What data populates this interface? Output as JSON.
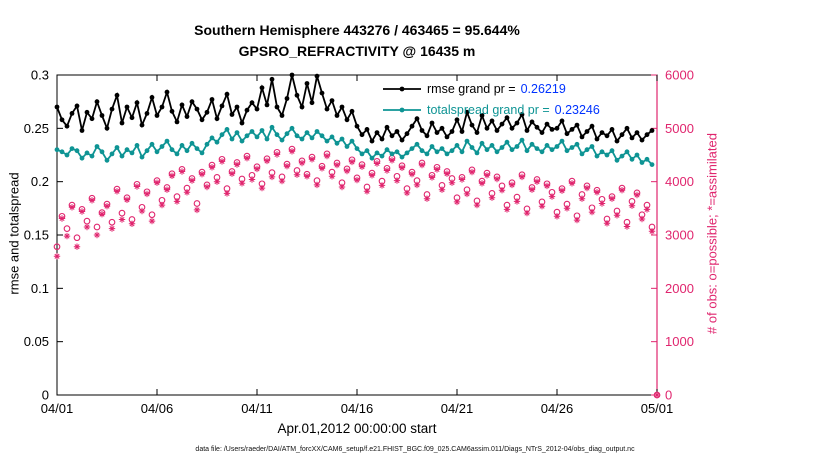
{
  "caption": "data file: /Users/raeder/DAI/ATM_forcXX/CAM6_setup/f.e21.FHIST_BGC.f09_025.CAM6assim.011/Diags_NTrS_2012-04/obs_diag_output.nc",
  "colors": {
    "legend_value": "#0033ff",
    "axis_black": "#000000",
    "obs_pink": "#e0256e",
    "spread_teal": "#0e9494"
  },
  "legend": [
    {
      "key": "rmse",
      "label": "rmse grand pr =",
      "value": "0.26219",
      "color": "#000000"
    },
    {
      "key": "totalspread",
      "label": "totalspread grand pr =",
      "value": "0.23246",
      "color": "#0e9494"
    }
  ],
  "chart_data": {
    "type": "line",
    "title": "Southern Hemisphere 443276 / 463465 = 95.644%",
    "subtitle": "GPSRO_REFRACTIVITY @ 16435 m",
    "xlabel": "Apr.01,2012 00:00:00 start",
    "ylabel_left": "rmse and totalspread",
    "ylabel_right": "# of obs: o=possible; *=assimilated",
    "grid": false,
    "right_axis_color": "#e0256e",
    "x_range": [
      0,
      120
    ],
    "x_unit": "6-hourly steps from Apr.01,2012 00:00 to May.01,2012 00:00",
    "x_tick_positions": [
      0,
      20,
      40,
      60,
      80,
      100,
      120
    ],
    "x_tick_labels": [
      "04/01",
      "04/06",
      "04/11",
      "04/16",
      "04/21",
      "04/26",
      "05/01"
    ],
    "left_range": [
      0,
      0.3
    ],
    "left_ticks": [
      0,
      0.05,
      0.1,
      0.15,
      0.2,
      0.25,
      0.3
    ],
    "left_tick_labels": [
      "0",
      "0.05",
      "0.1",
      "0.15",
      "0.2",
      "0.25",
      "0.3"
    ],
    "right_range": [
      0,
      6000
    ],
    "right_ticks": [
      0,
      1000,
      2000,
      3000,
      4000,
      5000,
      6000
    ],
    "right_tick_labels": [
      "0",
      "1000",
      "2000",
      "3000",
      "4000",
      "5000",
      "6000"
    ],
    "series": [
      {
        "name": "rmse",
        "type": "line",
        "axis": "left",
        "marker": "dot",
        "color": "#000000",
        "values": [
          0.27,
          0.258,
          0.252,
          0.264,
          0.271,
          0.248,
          0.265,
          0.259,
          0.275,
          0.262,
          0.25,
          0.268,
          0.281,
          0.255,
          0.27,
          0.26,
          0.274,
          0.253,
          0.264,
          0.279,
          0.262,
          0.27,
          0.284,
          0.266,
          0.256,
          0.272,
          0.261,
          0.275,
          0.268,
          0.258,
          0.265,
          0.277,
          0.259,
          0.271,
          0.282,
          0.263,
          0.27,
          0.255,
          0.267,
          0.274,
          0.268,
          0.288,
          0.272,
          0.296,
          0.27,
          0.262,
          0.278,
          0.3,
          0.281,
          0.27,
          0.292,
          0.274,
          0.299,
          0.283,
          0.268,
          0.276,
          0.262,
          0.27,
          0.258,
          0.266,
          0.252,
          0.244,
          0.249,
          0.238,
          0.246,
          0.24,
          0.251,
          0.243,
          0.247,
          0.239,
          0.245,
          0.252,
          0.259,
          0.248,
          0.243,
          0.255,
          0.246,
          0.25,
          0.242,
          0.247,
          0.258,
          0.247,
          0.265,
          0.253,
          0.246,
          0.262,
          0.25,
          0.257,
          0.248,
          0.254,
          0.26,
          0.25,
          0.255,
          0.263,
          0.248,
          0.256,
          0.251,
          0.246,
          0.254,
          0.249,
          0.25,
          0.257,
          0.245,
          0.249,
          0.253,
          0.242,
          0.247,
          0.252,
          0.24,
          0.246,
          0.243,
          0.249,
          0.238,
          0.244,
          0.25,
          0.241,
          0.246,
          0.239,
          0.244,
          0.248,
          null
        ]
      },
      {
        "name": "totalspread",
        "type": "line",
        "axis": "left",
        "marker": "dot",
        "color": "#0e9494",
        "values": [
          0.23,
          0.228,
          0.225,
          0.231,
          0.229,
          0.222,
          0.227,
          0.224,
          0.233,
          0.228,
          0.22,
          0.226,
          0.232,
          0.224,
          0.23,
          0.227,
          0.234,
          0.223,
          0.229,
          0.235,
          0.228,
          0.233,
          0.238,
          0.23,
          0.226,
          0.234,
          0.229,
          0.236,
          0.231,
          0.227,
          0.235,
          0.241,
          0.237,
          0.244,
          0.249,
          0.24,
          0.246,
          0.238,
          0.243,
          0.247,
          0.242,
          0.248,
          0.24,
          0.251,
          0.244,
          0.239,
          0.245,
          0.25,
          0.243,
          0.24,
          0.246,
          0.241,
          0.247,
          0.243,
          0.238,
          0.242,
          0.236,
          0.24,
          0.233,
          0.238,
          0.231,
          0.226,
          0.229,
          0.222,
          0.227,
          0.224,
          0.23,
          0.226,
          0.228,
          0.223,
          0.227,
          0.231,
          0.235,
          0.229,
          0.226,
          0.233,
          0.228,
          0.231,
          0.226,
          0.229,
          0.234,
          0.228,
          0.238,
          0.232,
          0.227,
          0.236,
          0.23,
          0.234,
          0.228,
          0.232,
          0.237,
          0.23,
          0.233,
          0.239,
          0.229,
          0.235,
          0.231,
          0.228,
          0.234,
          0.23,
          0.233,
          0.238,
          0.229,
          0.232,
          0.235,
          0.226,
          0.23,
          0.233,
          0.224,
          0.228,
          0.225,
          0.229,
          0.22,
          0.224,
          0.228,
          0.221,
          0.225,
          0.218,
          0.221,
          0.216,
          null
        ]
      },
      {
        "name": "possible",
        "type": "scatter",
        "axis": "right",
        "marker": "circle",
        "color": "#e0256e",
        "values": [
          2780,
          3350,
          3120,
          3560,
          2950,
          3480,
          3260,
          3690,
          3150,
          3420,
          3580,
          3240,
          3860,
          3410,
          3700,
          3290,
          3950,
          3520,
          3810,
          3380,
          4020,
          3650,
          3890,
          4150,
          3720,
          4230,
          3880,
          4060,
          3590,
          4180,
          3940,
          4310,
          4080,
          4420,
          3870,
          4190,
          4360,
          4050,
          4480,
          4120,
          4280,
          3960,
          4430,
          4170,
          4550,
          4090,
          4330,
          4610,
          4210,
          4390,
          4140,
          4460,
          4020,
          4290,
          4520,
          4180,
          4350,
          3980,
          4240,
          4410,
          4070,
          4320,
          3900,
          4160,
          4380,
          4010,
          4250,
          4440,
          4100,
          4300,
          3870,
          4180,
          4020,
          4350,
          3760,
          4120,
          4270,
          3930,
          4190,
          4060,
          3700,
          4080,
          3850,
          4220,
          3640,
          4010,
          4160,
          3780,
          4090,
          3920,
          3560,
          3980,
          3710,
          4130,
          3490,
          3890,
          4040,
          3620,
          3960,
          3800,
          3430,
          3870,
          3580,
          4010,
          3360,
          3760,
          3920,
          3510,
          3840,
          3670,
          3300,
          3720,
          3450,
          3880,
          3240,
          3630,
          3790,
          3380,
          3560,
          3150,
          0
        ]
      },
      {
        "name": "assimilated",
        "type": "scatter",
        "axis": "right",
        "marker": "asterisk",
        "color": "#e0256e",
        "values": [
          2600,
          3310,
          2980,
          3520,
          2780,
          3440,
          3150,
          3650,
          3000,
          3390,
          3540,
          3120,
          3820,
          3290,
          3660,
          3210,
          3910,
          3450,
          3770,
          3260,
          3980,
          3560,
          3850,
          4110,
          3630,
          4190,
          3800,
          4020,
          3470,
          4140,
          3900,
          4270,
          4000,
          4380,
          3780,
          4150,
          4320,
          3970,
          4440,
          4040,
          4240,
          3880,
          4390,
          4090,
          4510,
          4010,
          4290,
          4570,
          4130,
          4350,
          4100,
          4420,
          3940,
          4250,
          4480,
          4100,
          4310,
          3900,
          4200,
          4370,
          4030,
          4280,
          3820,
          4120,
          4340,
          3930,
          4210,
          4400,
          4020,
          4260,
          3790,
          4140,
          3940,
          4310,
          3680,
          4080,
          4230,
          3850,
          4150,
          3980,
          3620,
          4040,
          3770,
          4180,
          3560,
          3970,
          4120,
          3700,
          4050,
          3840,
          3480,
          3940,
          3630,
          4090,
          3410,
          3850,
          4000,
          3540,
          3920,
          3720,
          3350,
          3830,
          3500,
          3970,
          3280,
          3680,
          3880,
          3430,
          3800,
          3590,
          3220,
          3680,
          3370,
          3840,
          3160,
          3550,
          3750,
          3300,
          3480,
          3070,
          0
        ]
      }
    ]
  }
}
